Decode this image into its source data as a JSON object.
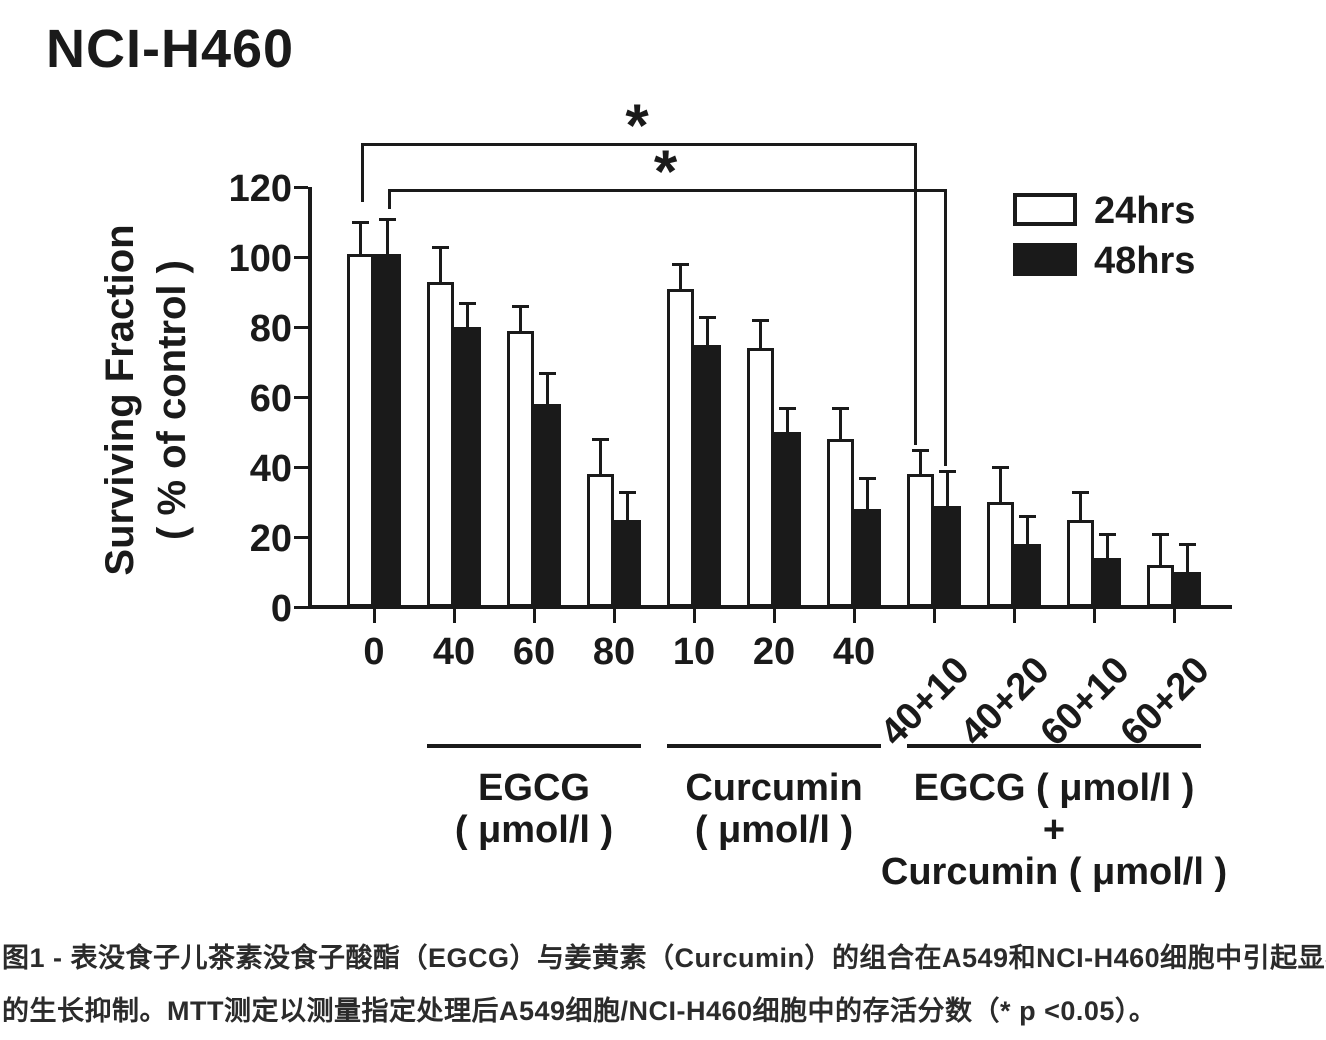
{
  "figure": {
    "title": "NCI-H460",
    "caption_line1": "图1 - 表没食子儿茶素没食子酸酯（EGCG）与姜黄素（Curcumin）的组合在A549和NCI-H460细胞中引起显著",
    "caption_line2": "的生长抑制。MTT测定以测量指定处理后A549细胞/NCI-H460细胞中的存活分数（* p <0.05）。"
  },
  "chart_data": {
    "type": "bar",
    "title": "NCI-H460",
    "ylabel_lines": [
      "Surviving Fraction",
      "( % of control )"
    ],
    "xlabel": "",
    "ylim": [
      0,
      120
    ],
    "yticks": [
      0,
      20,
      40,
      60,
      80,
      100,
      120
    ],
    "grid": false,
    "categories": [
      "0",
      "40",
      "60",
      "80",
      "10",
      "20",
      "40",
      "40+10",
      "40+20",
      "60+10",
      "60+20"
    ],
    "rotated_labels_start_index": 7,
    "series": [
      {
        "name": "24hrs",
        "fill": "#ffffff",
        "values": [
          101,
          93,
          79,
          38,
          91,
          74,
          48,
          38,
          30,
          25,
          12
        ],
        "errors": [
          9,
          10,
          7,
          10,
          7,
          8,
          9,
          7,
          10,
          8,
          9
        ]
      },
      {
        "name": "48hrs",
        "fill": "#1a1a1a",
        "values": [
          101,
          80,
          58,
          25,
          75,
          50,
          28,
          29,
          18,
          14,
          10
        ],
        "errors": [
          10,
          7,
          9,
          8,
          8,
          7,
          9,
          10,
          8,
          7,
          8
        ]
      }
    ],
    "legend": {
      "position": "top-right",
      "entries": [
        {
          "label": "24hrs",
          "fill": "#ffffff"
        },
        {
          "label": "48hrs",
          "fill": "#1a1a1a"
        }
      ]
    },
    "groups": [
      {
        "label_lines": [
          "EGCG",
          "( μmol/l )"
        ],
        "from": 1,
        "to": 3
      },
      {
        "label_lines": [
          "Curcumin",
          "( μmol/l )"
        ],
        "from": 4,
        "to": 6
      },
      {
        "label_lines": [
          "EGCG ( μmol/l )",
          "+",
          "Curcumin ( μmol/l )"
        ],
        "from": 7,
        "to": 10
      }
    ],
    "significance": [
      {
        "label": "*",
        "series": "24hrs",
        "from_category": "0",
        "to_category": "40+10"
      },
      {
        "label": "*",
        "series": "48hrs",
        "from_category": "0",
        "to_category": "40+10"
      }
    ],
    "axis_color": "#1a1a1a"
  }
}
